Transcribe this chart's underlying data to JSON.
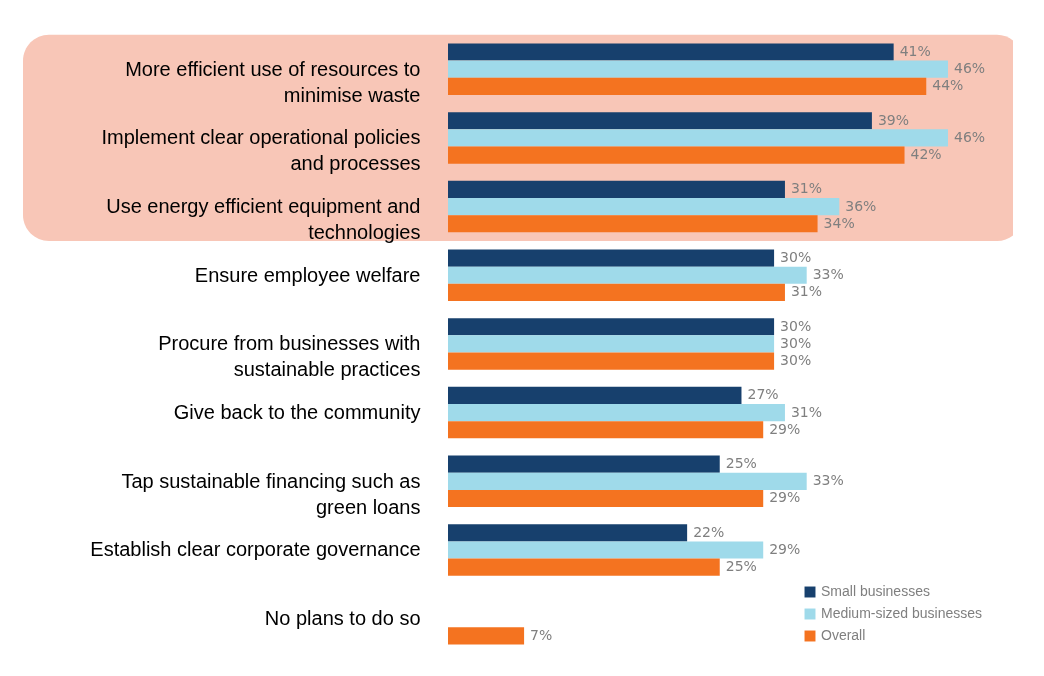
{
  "chart_data": {
    "type": "bar",
    "orientation": "horizontal",
    "legend": "bottom right",
    "categories": [
      "More efficient use of resources to minimise waste",
      "Implement clear operational policies and processes",
      "Use energy efficient equipment and technologies",
      "Ensure employee welfare",
      "Procure from businesses with sustainable practices",
      "Give back to the community",
      "Tap sustainable financing such as green loans",
      "Establish clear corporate governance",
      "No plans to do so"
    ],
    "series": [
      {
        "name": "Small businesses",
        "color": "#17406d",
        "values": [
          41,
          39,
          31,
          30,
          30,
          27,
          25,
          22,
          null
        ],
        "value_labels": [
          "41%",
          "39%",
          "31%",
          "30%",
          "30%",
          "27%",
          "25%",
          "22%",
          null
        ]
      },
      {
        "name": "Medium-sized businesses",
        "color": "#9fdaea",
        "values": [
          46,
          46,
          36,
          33,
          30,
          31,
          33,
          29,
          null
        ],
        "value_labels": [
          "46%",
          "46%",
          "36%",
          "33%",
          "30%",
          "31%",
          "33%",
          "29%",
          null
        ]
      },
      {
        "name": "Overall",
        "color": "#f47320",
        "values": [
          44,
          42,
          34,
          31,
          30,
          29,
          29,
          25,
          7
        ],
        "value_labels": [
          "44%",
          "42%",
          "34%",
          "31%",
          "30%",
          "29%",
          "29%",
          "25%",
          "7%"
        ]
      }
    ],
    "bands": [
      {
        "axis": "y",
        "from": "More efficient use of resources to minimise waste",
        "to": "Use energy efficient equipment and technologies",
        "color": "#f8c6b7"
      }
    ]
  }
}
